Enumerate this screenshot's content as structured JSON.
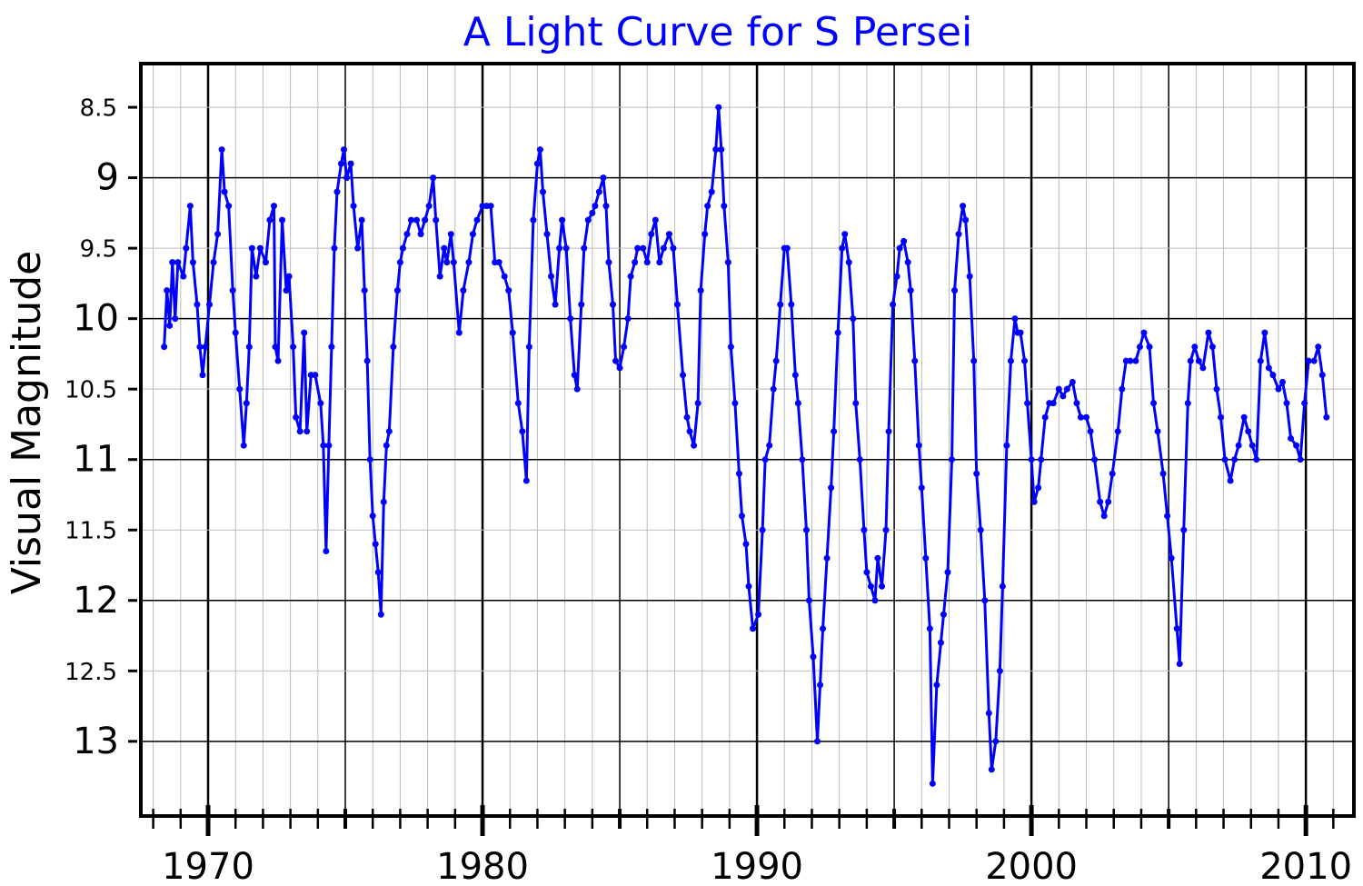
{
  "chart_data": {
    "type": "line",
    "title": "A Light Curve for S Persei",
    "ylabel": "Visual Magnitude",
    "color": "#0000ff",
    "x": [
      1968.4,
      1968.5,
      1968.6,
      1968.7,
      1968.8,
      1968.9,
      1969.1,
      1969.2,
      1969.35,
      1969.45,
      1969.6,
      1969.7,
      1969.8,
      1969.9,
      1970.05,
      1970.2,
      1970.35,
      1970.5,
      1970.6,
      1970.75,
      1970.9,
      1971.0,
      1971.15,
      1971.3,
      1971.4,
      1971.5,
      1971.6,
      1971.75,
      1971.9,
      1972.1,
      1972.25,
      1972.4,
      1972.45,
      1972.55,
      1972.7,
      1972.85,
      1972.95,
      1973.1,
      1973.2,
      1973.35,
      1973.5,
      1973.6,
      1973.75,
      1973.9,
      1974.1,
      1974.2,
      1974.3,
      1974.4,
      1974.5,
      1974.6,
      1974.7,
      1974.85,
      1974.95,
      1975.05,
      1975.2,
      1975.3,
      1975.45,
      1975.6,
      1975.7,
      1975.8,
      1975.9,
      1976.0,
      1976.1,
      1976.2,
      1976.3,
      1976.4,
      1976.5,
      1976.6,
      1976.75,
      1976.9,
      1977.0,
      1977.1,
      1977.25,
      1977.4,
      1977.6,
      1977.75,
      1977.9,
      1978.05,
      1978.2,
      1978.3,
      1978.45,
      1978.6,
      1978.7,
      1978.85,
      1978.95,
      1979.15,
      1979.3,
      1979.5,
      1979.65,
      1979.8,
      1980.0,
      1980.15,
      1980.3,
      1980.45,
      1980.6,
      1980.8,
      1980.95,
      1981.1,
      1981.3,
      1981.45,
      1981.6,
      1981.7,
      1981.85,
      1982.0,
      1982.1,
      1982.2,
      1982.35,
      1982.5,
      1982.65,
      1982.8,
      1982.9,
      1983.05,
      1983.2,
      1983.35,
      1983.45,
      1983.6,
      1983.7,
      1983.85,
      1984.0,
      1984.1,
      1984.25,
      1984.4,
      1984.5,
      1984.6,
      1984.75,
      1984.85,
      1985.0,
      1985.15,
      1985.3,
      1985.4,
      1985.55,
      1985.65,
      1985.85,
      1986.0,
      1986.15,
      1986.3,
      1986.45,
      1986.6,
      1986.8,
      1986.95,
      1987.1,
      1987.3,
      1987.45,
      1987.55,
      1987.7,
      1987.85,
      1987.95,
      1988.1,
      1988.2,
      1988.35,
      1988.5,
      1988.6,
      1988.7,
      1988.8,
      1988.95,
      1989.05,
      1989.2,
      1989.35,
      1989.45,
      1989.6,
      1989.7,
      1989.85,
      1990.05,
      1990.2,
      1990.3,
      1990.45,
      1990.6,
      1990.7,
      1990.85,
      1991.0,
      1991.1,
      1991.25,
      1991.4,
      1991.5,
      1991.65,
      1991.8,
      1991.9,
      1992.05,
      1992.2,
      1992.3,
      1992.4,
      1992.55,
      1992.7,
      1992.8,
      1992.95,
      1993.1,
      1993.2,
      1993.35,
      1993.5,
      1993.6,
      1993.75,
      1993.9,
      1994.0,
      1994.15,
      1994.3,
      1994.4,
      1994.55,
      1994.7,
      1994.8,
      1994.95,
      1995.1,
      1995.2,
      1995.35,
      1995.5,
      1995.6,
      1995.75,
      1995.9,
      1996.0,
      1996.15,
      1996.3,
      1996.4,
      1996.55,
      1996.7,
      1996.8,
      1996.95,
      1997.1,
      1997.2,
      1997.35,
      1997.5,
      1997.6,
      1997.75,
      1997.9,
      1998.0,
      1998.15,
      1998.3,
      1998.45,
      1998.55,
      1998.7,
      1998.85,
      1998.95,
      1999.1,
      1999.25,
      1999.4,
      1999.5,
      1999.6,
      1999.75,
      1999.85,
      2000.0,
      2000.1,
      2000.25,
      2000.35,
      2000.5,
      2000.65,
      2000.8,
      2001.0,
      2001.15,
      2001.3,
      2001.5,
      2001.65,
      2001.8,
      2002.0,
      2002.15,
      2002.3,
      2002.5,
      2002.65,
      2002.8,
      2002.95,
      2003.15,
      2003.3,
      2003.45,
      2003.6,
      2003.8,
      2003.95,
      2004.1,
      2004.3,
      2004.45,
      2004.6,
      2004.8,
      2004.95,
      2005.1,
      2005.3,
      2005.4,
      2005.55,
      2005.7,
      2005.8,
      2005.95,
      2006.1,
      2006.25,
      2006.45,
      2006.6,
      2006.75,
      2006.9,
      2007.05,
      2007.25,
      2007.4,
      2007.55,
      2007.75,
      2007.9,
      2008.05,
      2008.2,
      2008.35,
      2008.5,
      2008.65,
      2008.8,
      2009.0,
      2009.15,
      2009.3,
      2009.45,
      2009.65,
      2009.8,
      2009.95,
      2010.1,
      2010.3,
      2010.45,
      2010.6,
      2010.75
    ],
    "values": [
      10.2,
      9.8,
      10.05,
      9.6,
      10.0,
      9.6,
      9.7,
      9.5,
      9.2,
      9.6,
      9.9,
      10.2,
      10.4,
      10.2,
      9.9,
      9.6,
      9.4,
      8.8,
      9.1,
      9.2,
      9.8,
      10.1,
      10.5,
      10.9,
      10.6,
      10.2,
      9.5,
      9.7,
      9.5,
      9.6,
      9.3,
      9.2,
      10.2,
      10.3,
      9.3,
      9.8,
      9.7,
      10.2,
      10.7,
      10.8,
      10.1,
      10.8,
      10.4,
      10.4,
      10.6,
      10.9,
      11.65,
      10.9,
      10.2,
      9.5,
      9.1,
      8.9,
      8.8,
      9.0,
      8.9,
      9.2,
      9.5,
      9.3,
      9.8,
      10.3,
      11.0,
      11.4,
      11.6,
      11.8,
      12.1,
      11.3,
      10.9,
      10.8,
      10.2,
      9.8,
      9.6,
      9.5,
      9.4,
      9.3,
      9.3,
      9.4,
      9.3,
      9.2,
      9.0,
      9.3,
      9.7,
      9.5,
      9.6,
      9.4,
      9.6,
      10.1,
      9.8,
      9.6,
      9.4,
      9.3,
      9.2,
      9.2,
      9.2,
      9.6,
      9.6,
      9.7,
      9.8,
      10.1,
      10.6,
      10.8,
      11.15,
      10.2,
      9.3,
      8.9,
      8.8,
      9.1,
      9.4,
      9.7,
      9.9,
      9.5,
      9.3,
      9.5,
      10.0,
      10.4,
      10.5,
      9.9,
      9.5,
      9.3,
      9.25,
      9.2,
      9.1,
      9.0,
      9.2,
      9.6,
      9.9,
      10.3,
      10.35,
      10.2,
      10.0,
      9.7,
      9.6,
      9.5,
      9.5,
      9.6,
      9.4,
      9.3,
      9.6,
      9.5,
      9.4,
      9.5,
      9.9,
      10.4,
      10.7,
      10.8,
      10.9,
      10.6,
      9.8,
      9.4,
      9.2,
      9.1,
      8.8,
      8.5,
      8.8,
      9.2,
      9.6,
      10.2,
      10.6,
      11.1,
      11.4,
      11.6,
      11.9,
      12.2,
      12.1,
      11.5,
      11.0,
      10.9,
      10.5,
      10.3,
      9.9,
      9.5,
      9.5,
      9.9,
      10.4,
      10.6,
      11.0,
      11.5,
      12.0,
      12.4,
      13.0,
      12.6,
      12.2,
      11.7,
      11.2,
      10.8,
      10.1,
      9.5,
      9.4,
      9.6,
      10.0,
      10.6,
      11.0,
      11.5,
      11.8,
      11.9,
      12.0,
      11.7,
      11.9,
      11.5,
      10.8,
      9.9,
      9.7,
      9.5,
      9.45,
      9.6,
      9.8,
      10.3,
      10.9,
      11.2,
      11.7,
      12.2,
      13.3,
      12.6,
      12.3,
      12.1,
      11.8,
      11.0,
      9.8,
      9.4,
      9.2,
      9.3,
      9.7,
      10.3,
      11.1,
      11.5,
      12.0,
      12.8,
      13.2,
      13.0,
      12.5,
      11.9,
      10.9,
      10.3,
      10.0,
      10.1,
      10.1,
      10.3,
      10.6,
      11.0,
      11.3,
      11.2,
      11.0,
      10.7,
      10.6,
      10.6,
      10.5,
      10.55,
      10.5,
      10.45,
      10.6,
      10.7,
      10.7,
      10.8,
      11.0,
      11.3,
      11.4,
      11.3,
      11.1,
      10.8,
      10.5,
      10.3,
      10.3,
      10.3,
      10.2,
      10.1,
      10.2,
      10.6,
      10.8,
      11.1,
      11.4,
      11.7,
      12.2,
      12.45,
      11.5,
      10.6,
      10.3,
      10.2,
      10.3,
      10.35,
      10.1,
      10.2,
      10.5,
      10.7,
      11.0,
      11.15,
      11.0,
      10.9,
      10.7,
      10.8,
      10.9,
      11.0,
      10.3,
      10.1,
      10.35,
      10.4,
      10.5,
      10.45,
      10.6,
      10.85,
      10.9,
      11.0,
      10.6,
      10.3,
      10.3,
      10.2,
      10.4,
      10.7
    ],
    "xlim": [
      1967.55,
      2011.75
    ],
    "xticks": [
      1970,
      1980,
      1990,
      2000,
      2010
    ],
    "xminorticks": [
      1968,
      1969,
      1970,
      1971,
      1972,
      1973,
      1974,
      1975,
      1976,
      1977,
      1978,
      1979,
      1980,
      1981,
      1982,
      1983,
      1984,
      1985,
      1986,
      1987,
      1988,
      1989,
      1990,
      1991,
      1992,
      1993,
      1994,
      1995,
      1996,
      1997,
      1998,
      1999,
      2000,
      2001,
      2002,
      2003,
      2004,
      2005,
      2006,
      2007,
      2008,
      2009,
      2010,
      2011
    ],
    "ylim": [
      8.19,
      13.53
    ],
    "y_inverted": true,
    "yticks": [
      8.5,
      9,
      9.5,
      10,
      10.5,
      11,
      11.5,
      12,
      12.5,
      13
    ],
    "grid": true
  }
}
